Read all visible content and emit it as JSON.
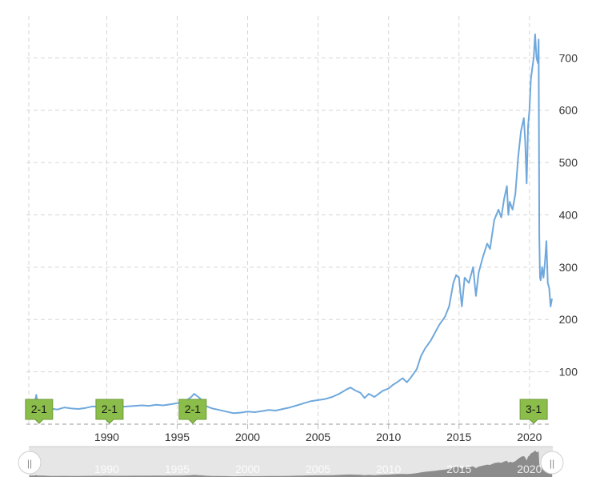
{
  "chart_data": {
    "type": "line",
    "title": "",
    "xlabel": "",
    "ylabel": "",
    "xlim": [
      1984.3,
      2021.6
    ],
    "ylim": [
      0,
      780
    ],
    "y_axis_position": "right",
    "grid": true,
    "x_ticks": [
      "1990",
      "1995",
      "2000",
      "2005",
      "2010",
      "2015",
      "2020"
    ],
    "y_ticks": [
      "100",
      "200",
      "300",
      "400",
      "500",
      "600",
      "700"
    ],
    "line_color": "#6fa8dc",
    "series": [
      {
        "points": [
          [
            1984.5,
            38
          ],
          [
            1984.9,
            42
          ],
          [
            1985.0,
            56
          ],
          [
            1985.1,
            40
          ],
          [
            1985.5,
            38
          ],
          [
            1986.0,
            30
          ],
          [
            1986.5,
            28
          ],
          [
            1987.0,
            32
          ],
          [
            1987.5,
            30
          ],
          [
            1988.0,
            29
          ],
          [
            1988.5,
            31
          ],
          [
            1989.0,
            34
          ],
          [
            1989.5,
            33
          ],
          [
            1990.0,
            35
          ],
          [
            1990.5,
            34
          ],
          [
            1991.0,
            33
          ],
          [
            1991.5,
            34
          ],
          [
            1992.0,
            35
          ],
          [
            1992.5,
            36
          ],
          [
            1993.0,
            35
          ],
          [
            1993.5,
            37
          ],
          [
            1994.0,
            36
          ],
          [
            1994.5,
            38
          ],
          [
            1995.0,
            40
          ],
          [
            1995.5,
            43
          ],
          [
            1995.8,
            48
          ],
          [
            1996.0,
            52
          ],
          [
            1996.2,
            58
          ],
          [
            1996.5,
            52
          ],
          [
            1996.8,
            45
          ],
          [
            1997.0,
            35
          ],
          [
            1997.5,
            30
          ],
          [
            1998.0,
            27
          ],
          [
            1998.5,
            24
          ],
          [
            1999.0,
            21
          ],
          [
            1999.5,
            22
          ],
          [
            2000.0,
            24
          ],
          [
            2000.5,
            23
          ],
          [
            2001.0,
            25
          ],
          [
            2001.5,
            27
          ],
          [
            2002.0,
            26
          ],
          [
            2002.5,
            29
          ],
          [
            2003.0,
            32
          ],
          [
            2003.5,
            36
          ],
          [
            2004.0,
            40
          ],
          [
            2004.5,
            44
          ],
          [
            2005.0,
            46
          ],
          [
            2005.5,
            48
          ],
          [
            2006.0,
            52
          ],
          [
            2006.5,
            58
          ],
          [
            2007.0,
            66
          ],
          [
            2007.3,
            70
          ],
          [
            2007.6,
            65
          ],
          [
            2008.0,
            60
          ],
          [
            2008.3,
            50
          ],
          [
            2008.6,
            58
          ],
          [
            2009.0,
            52
          ],
          [
            2009.3,
            58
          ],
          [
            2009.6,
            64
          ],
          [
            2010.0,
            68
          ],
          [
            2010.3,
            75
          ],
          [
            2010.6,
            80
          ],
          [
            2011.0,
            88
          ],
          [
            2011.3,
            80
          ],
          [
            2011.6,
            90
          ],
          [
            2012.0,
            105
          ],
          [
            2012.3,
            130
          ],
          [
            2012.6,
            145
          ],
          [
            2013.0,
            160
          ],
          [
            2013.3,
            175
          ],
          [
            2013.6,
            190
          ],
          [
            2014.0,
            205
          ],
          [
            2014.3,
            225
          ],
          [
            2014.6,
            270
          ],
          [
            2014.8,
            285
          ],
          [
            2015.0,
            280
          ],
          [
            2015.2,
            225
          ],
          [
            2015.4,
            280
          ],
          [
            2015.7,
            270
          ],
          [
            2016.0,
            300
          ],
          [
            2016.2,
            245
          ],
          [
            2016.4,
            290
          ],
          [
            2016.7,
            320
          ],
          [
            2017.0,
            345
          ],
          [
            2017.2,
            335
          ],
          [
            2017.5,
            390
          ],
          [
            2017.8,
            410
          ],
          [
            2018.0,
            395
          ],
          [
            2018.2,
            430
          ],
          [
            2018.4,
            455
          ],
          [
            2018.5,
            400
          ],
          [
            2018.6,
            425
          ],
          [
            2018.8,
            410
          ],
          [
            2019.0,
            440
          ],
          [
            2019.2,
            510
          ],
          [
            2019.4,
            560
          ],
          [
            2019.6,
            585
          ],
          [
            2019.7,
            540
          ],
          [
            2019.8,
            460
          ],
          [
            2019.9,
            570
          ],
          [
            2020.0,
            600
          ],
          [
            2020.1,
            660
          ],
          [
            2020.3,
            700
          ],
          [
            2020.4,
            745
          ],
          [
            2020.5,
            700
          ],
          [
            2020.6,
            690
          ],
          [
            2020.65,
            735
          ],
          [
            2020.7,
            360
          ],
          [
            2020.75,
            280
          ],
          [
            2020.8,
            275
          ],
          [
            2020.9,
            300
          ],
          [
            2021.0,
            280
          ],
          [
            2021.1,
            310
          ],
          [
            2021.2,
            350
          ],
          [
            2021.3,
            270
          ],
          [
            2021.4,
            260
          ],
          [
            2021.5,
            225
          ],
          [
            2021.6,
            240
          ]
        ]
      }
    ],
    "annotations": [
      {
        "label": "2-1",
        "x": 1985.2
      },
      {
        "label": "2-1",
        "x": 1990.2
      },
      {
        "label": "2-1",
        "x": 1996.1
      },
      {
        "label": "3-1",
        "x": 2020.3
      }
    ],
    "navigator": {
      "labels": [
        "1990",
        "1995",
        "2000",
        "2005",
        "2010",
        "2015",
        "2020"
      ],
      "left_handle_glyph": "||",
      "right_handle_glyph": "||"
    }
  }
}
